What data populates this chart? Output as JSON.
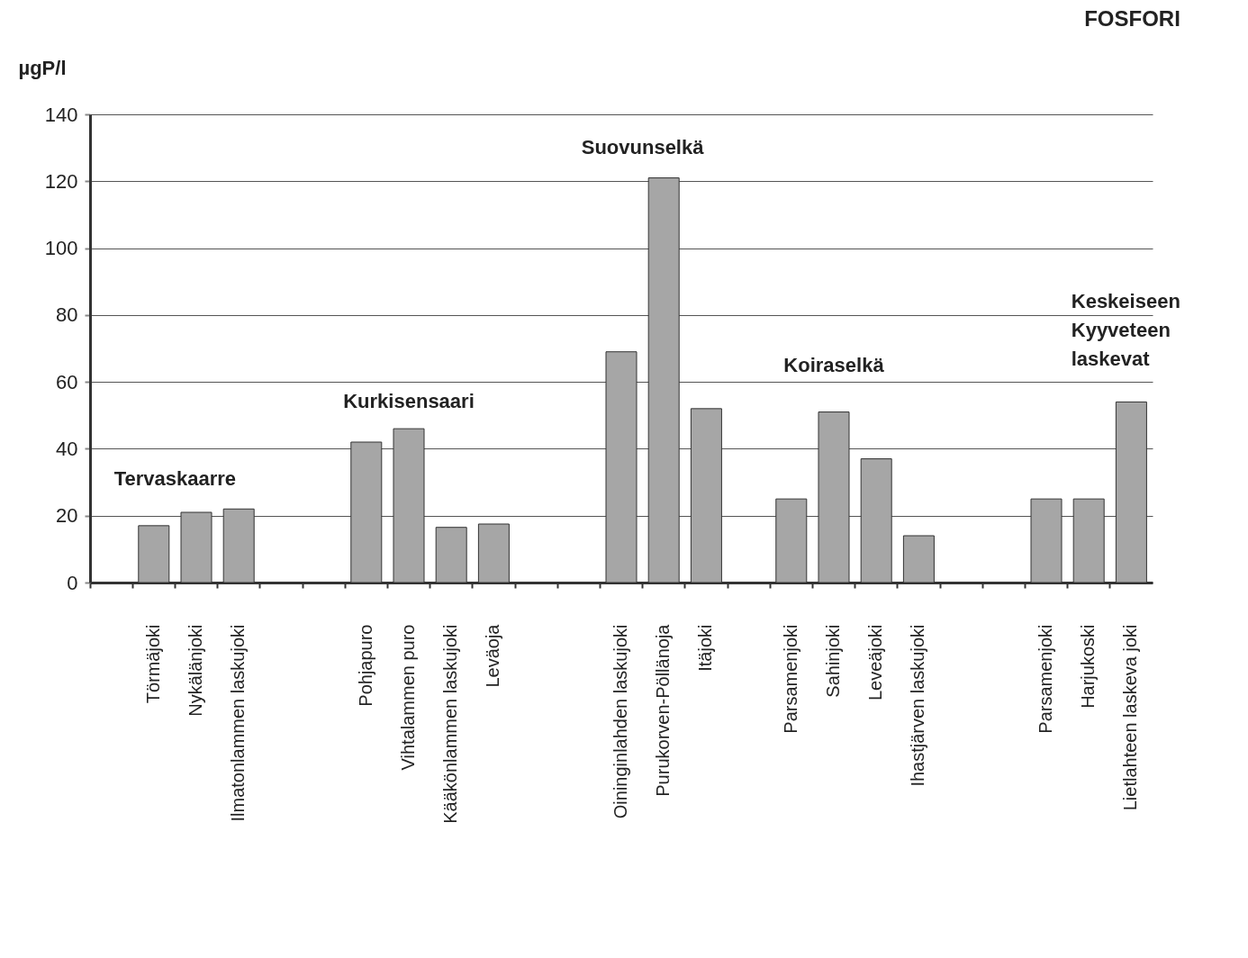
{
  "chart_data": {
    "type": "bar",
    "title": "FOSFORI",
    "ylabel": "µgP/l",
    "categories": [
      null,
      "Törmäjoki",
      "Nykälänjoki",
      "Ilmatonlammen laskujoki",
      null,
      null,
      "Pohjapuro",
      "Vihtalammen puro",
      "Kääkönlammen laskujoki",
      "Leväoja",
      null,
      null,
      "Oininginlahden laskujoki",
      "Purukorven-Pöllänoja",
      "Itäjoki",
      null,
      "Parsamenjoki",
      "Sahinjoki",
      "Leveäjoki",
      "Ihastjärven laskujoki",
      null,
      null,
      "Parsamenjoki",
      "Harjukoski",
      "Lietlahteen laskeva joki"
    ],
    "values": [
      null,
      17,
      21,
      22,
      null,
      null,
      42,
      46,
      16.5,
      17.5,
      null,
      null,
      69,
      121,
      52,
      null,
      25,
      51,
      37,
      14,
      null,
      null,
      25,
      25,
      54
    ],
    "color": "#a6a6a6",
    "ylim": [
      0,
      140
    ],
    "yticks": [
      0,
      20,
      40,
      60,
      80,
      100,
      120,
      140
    ],
    "grid": "y",
    "annotations": [
      "Tervaskaarre",
      "Kurkisensaari",
      "Suovunselkä",
      "Koiraselkä",
      "Keskeiseen Kyyveteen laskevat"
    ]
  }
}
